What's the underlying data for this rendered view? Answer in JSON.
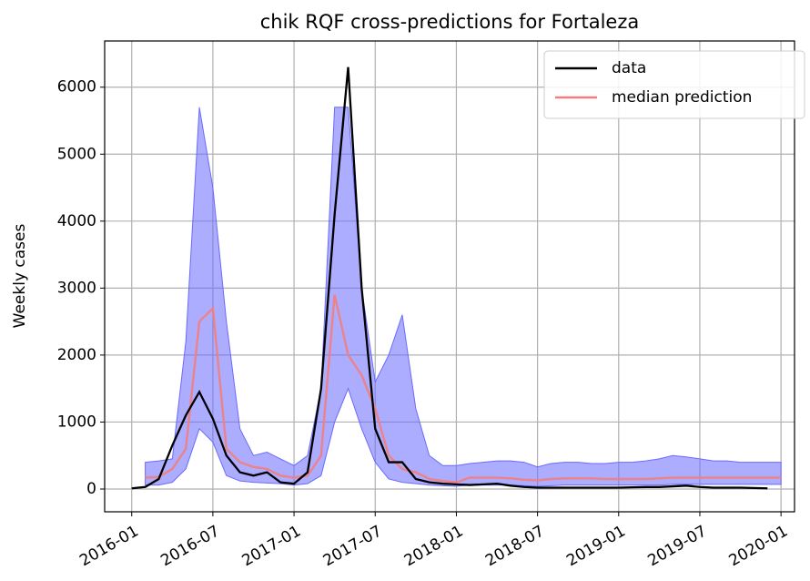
{
  "chart_data": {
    "type": "line",
    "title": "chik RQF cross-predictions for Fortaleza",
    "y_label": "Weekly cases",
    "x": [
      "2016-01",
      "2016-02",
      "2016-03",
      "2016-04",
      "2016-05",
      "2016-06",
      "2016-07",
      "2016-08",
      "2016-09",
      "2016-10",
      "2016-11",
      "2016-12",
      "2017-01",
      "2017-02",
      "2017-03",
      "2017-04",
      "2017-05",
      "2017-06",
      "2017-07",
      "2017-08",
      "2017-09",
      "2017-10",
      "2017-11",
      "2017-12",
      "2018-01",
      "2018-02",
      "2018-03",
      "2018-04",
      "2018-05",
      "2018-06",
      "2018-07",
      "2018-08",
      "2018-09",
      "2018-10",
      "2018-11",
      "2018-12",
      "2019-01",
      "2019-02",
      "2019-03",
      "2019-04",
      "2019-05",
      "2019-06",
      "2019-07",
      "2019-08",
      "2019-09",
      "2019-10",
      "2019-11",
      "2019-12",
      "2020-01"
    ],
    "series": [
      {
        "name": "data",
        "color": "#000000",
        "values": [
          10,
          30,
          150,
          650,
          1100,
          1450,
          1050,
          500,
          250,
          200,
          250,
          100,
          80,
          250,
          1500,
          4100,
          6300,
          3000,
          900,
          400,
          400,
          150,
          100,
          80,
          70,
          60,
          70,
          80,
          50,
          30,
          20,
          20,
          20,
          20,
          20,
          20,
          20,
          25,
          30,
          30,
          40,
          50,
          30,
          20,
          20,
          20,
          15,
          10,
          null
        ]
      },
      {
        "name": "median prediction",
        "color": "#f08080",
        "values": [
          null,
          170,
          180,
          300,
          600,
          2500,
          2700,
          600,
          400,
          330,
          300,
          200,
          170,
          200,
          500,
          2900,
          2000,
          1700,
          1200,
          500,
          300,
          250,
          150,
          120,
          100,
          170,
          170,
          170,
          160,
          140,
          130,
          150,
          160,
          160,
          160,
          150,
          150,
          150,
          150,
          160,
          170,
          170,
          170,
          170,
          170,
          170,
          170,
          170,
          170
        ]
      }
    ],
    "band": {
      "color": "#6a6aff",
      "lower": [
        null,
        60,
        60,
        100,
        300,
        900,
        700,
        200,
        120,
        100,
        90,
        80,
        60,
        80,
        200,
        1000,
        1500,
        900,
        400,
        150,
        100,
        80,
        60,
        50,
        40,
        60,
        60,
        60,
        60,
        50,
        40,
        50,
        60,
        60,
        60,
        60,
        60,
        60,
        60,
        60,
        70,
        70,
        70,
        70,
        70,
        70,
        70,
        70,
        70
      ],
      "upper": [
        null,
        400,
        420,
        450,
        2200,
        5700,
        4500,
        2500,
        900,
        500,
        550,
        450,
        350,
        500,
        1500,
        5700,
        5700,
        3000,
        1600,
        2000,
        2600,
        1200,
        500,
        350,
        350,
        380,
        400,
        420,
        420,
        400,
        330,
        380,
        400,
        400,
        380,
        380,
        400,
        400,
        420,
        450,
        500,
        480,
        450,
        420,
        420,
        400,
        400,
        400,
        400
      ]
    },
    "xlim": [
      "2015-11",
      "2020-02"
    ],
    "xticks": [
      "2016-01",
      "2016-07",
      "2017-01",
      "2017-07",
      "2018-01",
      "2018-07",
      "2019-01",
      "2019-07",
      "2020-01"
    ],
    "ylim": [
      -340,
      6690
    ],
    "yticks": [
      0,
      1000,
      2000,
      3000,
      4000,
      5000,
      6000
    ],
    "grid": true,
    "legend": "upper right"
  }
}
